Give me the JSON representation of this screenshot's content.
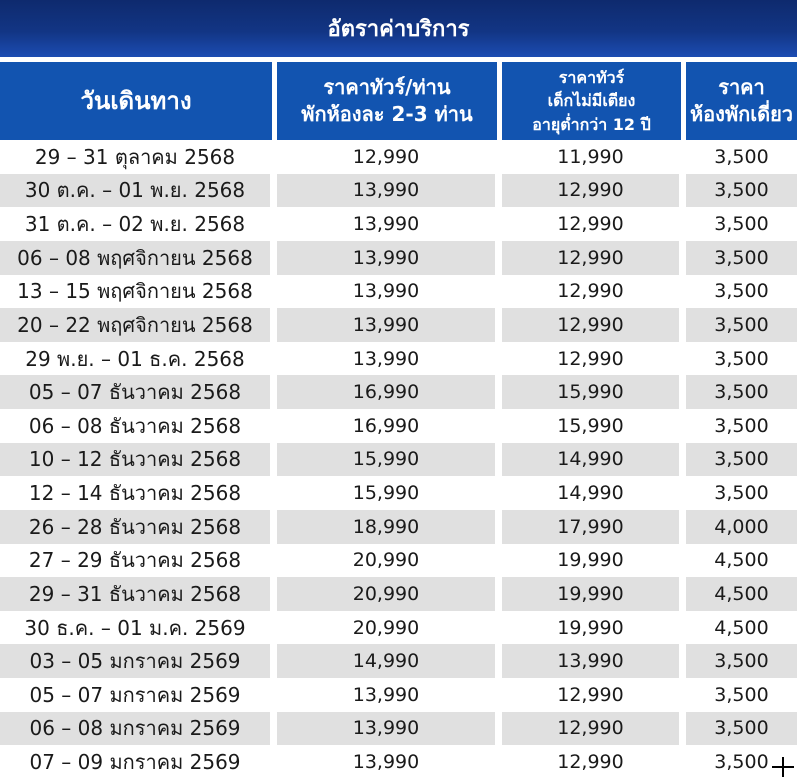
{
  "title": "อัตราค่าบริการ",
  "colors": {
    "banner_top": "#0e2a6e",
    "banner_bottom": "#1c4cb2",
    "header_bg": "#1254b0",
    "row_alt": "#e0e0e0",
    "text": "#1a1a1a",
    "header_text": "#ffffff"
  },
  "table": {
    "columns": [
      {
        "name": "travel-date",
        "lines": [
          "วันเดินทาง"
        ]
      },
      {
        "name": "price-adult",
        "lines": [
          "ราคาทัวร์/ท่าน",
          "พักห้องละ 2-3 ท่าน"
        ]
      },
      {
        "name": "price-child-no-bed",
        "lines": [
          "ราคาทัวร์",
          "เด็กไม่มีเตียง",
          "อายุต่ำกว่า 12 ปี"
        ]
      },
      {
        "name": "price-single-room",
        "lines": [
          "ราคา",
          "ห้องพักเดี่ยว"
        ]
      }
    ],
    "rows": [
      [
        "29 – 31 ตุลาคม 2568",
        "12,990",
        "11,990",
        "3,500"
      ],
      [
        "30 ต.ค. – 01 พ.ย. 2568",
        "13,990",
        "12,990",
        "3,500"
      ],
      [
        "31 ต.ค. – 02 พ.ย. 2568",
        "13,990",
        "12,990",
        "3,500"
      ],
      [
        "06 – 08 พฤศจิกายน 2568",
        "13,990",
        "12,990",
        "3,500"
      ],
      [
        "13 – 15 พฤศจิกายน 2568",
        "13,990",
        "12,990",
        "3,500"
      ],
      [
        "20 – 22 พฤศจิกายน 2568",
        "13,990",
        "12,990",
        "3,500"
      ],
      [
        "29 พ.ย. – 01 ธ.ค. 2568",
        "13,990",
        "12,990",
        "3,500"
      ],
      [
        "05 – 07 ธันวาคม 2568",
        "16,990",
        "15,990",
        "3,500"
      ],
      [
        "06 – 08 ธันวาคม 2568",
        "16,990",
        "15,990",
        "3,500"
      ],
      [
        "10 – 12 ธันวาคม 2568",
        "15,990",
        "14,990",
        "3,500"
      ],
      [
        "12 – 14 ธันวาคม 2568",
        "15,990",
        "14,990",
        "3,500"
      ],
      [
        "26 – 28 ธันวาคม 2568",
        "18,990",
        "17,990",
        "4,000"
      ],
      [
        "27 – 29 ธันวาคม 2568",
        "20,990",
        "19,990",
        "4,500"
      ],
      [
        "29 – 31 ธันวาคม 2568",
        "20,990",
        "19,990",
        "4,500"
      ],
      [
        "30 ธ.ค. – 01 ม.ค. 2569",
        "20,990",
        "19,990",
        "4,500"
      ],
      [
        "03 – 05 มกราคม 2569",
        "14,990",
        "13,990",
        "3,500"
      ],
      [
        "05 – 07 มกราคม 2569",
        "13,990",
        "12,990",
        "3,500"
      ],
      [
        "06 – 08 มกราคม 2569",
        "13,990",
        "12,990",
        "3,500"
      ],
      [
        "07 – 09 มกราคม 2569",
        "13,990",
        "12,990",
        "3,500"
      ]
    ]
  },
  "cursor": {
    "type": "crosshair"
  }
}
